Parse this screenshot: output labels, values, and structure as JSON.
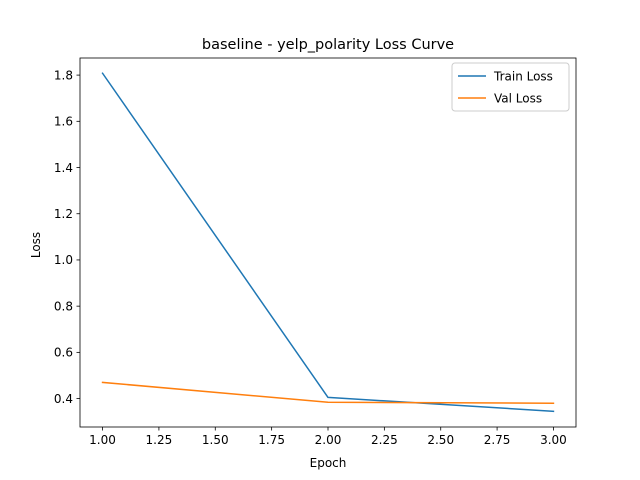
{
  "chart_data": {
    "type": "line",
    "title": "baseline - yelp_polarity Loss Curve",
    "xlabel": "Epoch",
    "ylabel": "Loss",
    "x": [
      1.0,
      2.0,
      3.0
    ],
    "xlim": [
      0.9,
      3.1
    ],
    "ylim": [
      0.277,
      1.874
    ],
    "xticks": [
      1.0,
      1.25,
      1.5,
      1.75,
      2.0,
      2.25,
      2.5,
      2.75,
      3.0
    ],
    "xtick_labels": [
      "1.00",
      "1.25",
      "1.50",
      "1.75",
      "2.00",
      "2.25",
      "2.50",
      "2.75",
      "3.00"
    ],
    "yticks": [
      0.4,
      0.6,
      0.8,
      1.0,
      1.2,
      1.4,
      1.6,
      1.8
    ],
    "ytick_labels": [
      "0.4",
      "0.6",
      "0.8",
      "1.0",
      "1.2",
      "1.4",
      "1.6",
      "1.8"
    ],
    "grid": false,
    "legend_position": "top-right",
    "series": [
      {
        "name": "Train Loss",
        "color": "#1f77b4",
        "values": [
          1.808,
          0.405,
          0.345
        ]
      },
      {
        "name": "Val Loss",
        "color": "#ff7f0e",
        "values": [
          0.47,
          0.384,
          0.38
        ]
      }
    ]
  }
}
